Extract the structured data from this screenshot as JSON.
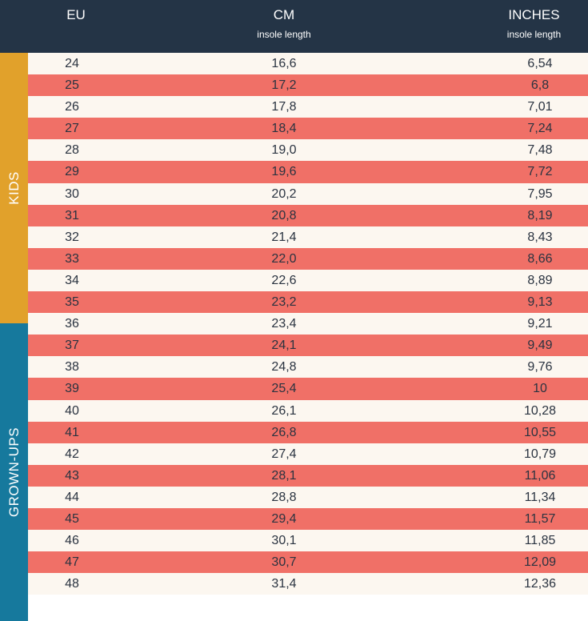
{
  "header": {
    "eu": "EU",
    "cm": "CM",
    "cm_sub": "insole length",
    "inches": "INCHES",
    "inches_sub": "insole length"
  },
  "groups": {
    "kids": "KIDS",
    "grownups": "GROWN-UPS"
  },
  "colors": {
    "header_bg": "#243446",
    "kids_band": "#e1a12b",
    "grownups_band": "#16799d",
    "row_light": "#fcf7f0",
    "row_stripe": "#f07067"
  },
  "rows": [
    {
      "eu": "24",
      "cm": "16,6",
      "in": "6,54"
    },
    {
      "eu": "25",
      "cm": "17,2",
      "in": "6,8"
    },
    {
      "eu": "26",
      "cm": "17,8",
      "in": "7,01"
    },
    {
      "eu": "27",
      "cm": "18,4",
      "in": "7,24"
    },
    {
      "eu": "28",
      "cm": "19,0",
      "in": "7,48"
    },
    {
      "eu": "29",
      "cm": "19,6",
      "in": "7,72"
    },
    {
      "eu": "30",
      "cm": "20,2",
      "in": "7,95"
    },
    {
      "eu": "31",
      "cm": "20,8",
      "in": "8,19"
    },
    {
      "eu": "32",
      "cm": "21,4",
      "in": "8,43"
    },
    {
      "eu": "33",
      "cm": "22,0",
      "in": "8,66"
    },
    {
      "eu": "34",
      "cm": "22,6",
      "in": "8,89"
    },
    {
      "eu": "35",
      "cm": "23,2",
      "in": "9,13"
    },
    {
      "eu": "36",
      "cm": "23,4",
      "in": "9,21"
    },
    {
      "eu": "37",
      "cm": "24,1",
      "in": "9,49"
    },
    {
      "eu": "38",
      "cm": "24,8",
      "in": "9,76"
    },
    {
      "eu": "39",
      "cm": "25,4",
      "in": "10"
    },
    {
      "eu": "40",
      "cm": "26,1",
      "in": "10,28"
    },
    {
      "eu": "41",
      "cm": "26,8",
      "in": "10,55"
    },
    {
      "eu": "42",
      "cm": "27,4",
      "in": "10,79"
    },
    {
      "eu": "43",
      "cm": "28,1",
      "in": "11,06"
    },
    {
      "eu": "44",
      "cm": "28,8",
      "in": "11,34"
    },
    {
      "eu": "45",
      "cm": "29,4",
      "in": "11,57"
    },
    {
      "eu": "46",
      "cm": "30,1",
      "in": "11,85"
    },
    {
      "eu": "47",
      "cm": "30,7",
      "in": "12,09"
    },
    {
      "eu": "48",
      "cm": "31,4",
      "in": "12,36"
    }
  ]
}
